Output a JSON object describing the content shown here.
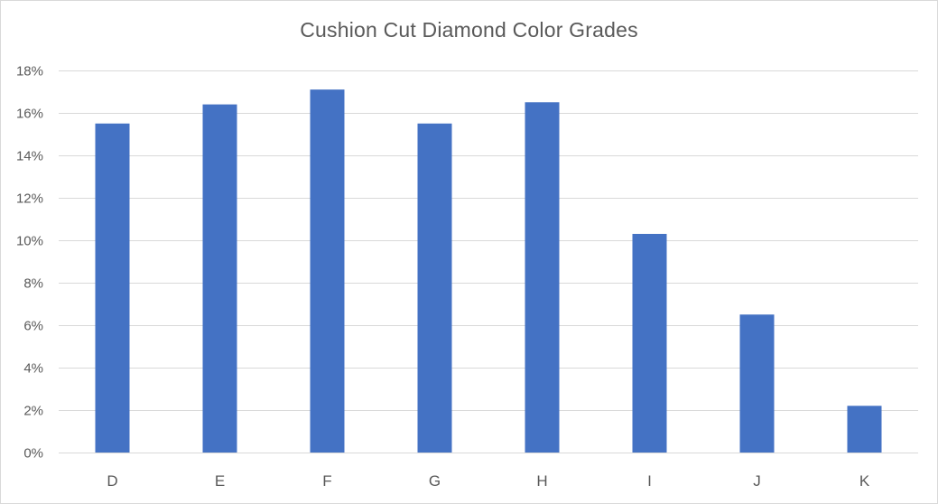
{
  "chart_data": {
    "type": "bar",
    "title": "Cushion Cut Diamond Color Grades",
    "xlabel": "",
    "ylabel": "",
    "categories": [
      "D",
      "E",
      "F",
      "G",
      "H",
      "I",
      "J",
      "K"
    ],
    "values": [
      15.5,
      16.4,
      17.1,
      15.5,
      16.5,
      10.3,
      6.5,
      2.2
    ],
    "value_unit": "%",
    "ylim": [
      0,
      18
    ],
    "y_ticks": [
      0,
      2,
      4,
      6,
      8,
      10,
      12,
      14,
      16,
      18
    ],
    "y_tick_labels": [
      "0%",
      "2%",
      "4%",
      "6%",
      "8%",
      "10%",
      "12%",
      "14%",
      "16%",
      "18%"
    ],
    "grid": true,
    "legend": "none",
    "colors": {
      "bar": "#4472c4",
      "grid": "#d9d9d9",
      "axis_text": "#595959",
      "title_text": "#595959"
    }
  }
}
